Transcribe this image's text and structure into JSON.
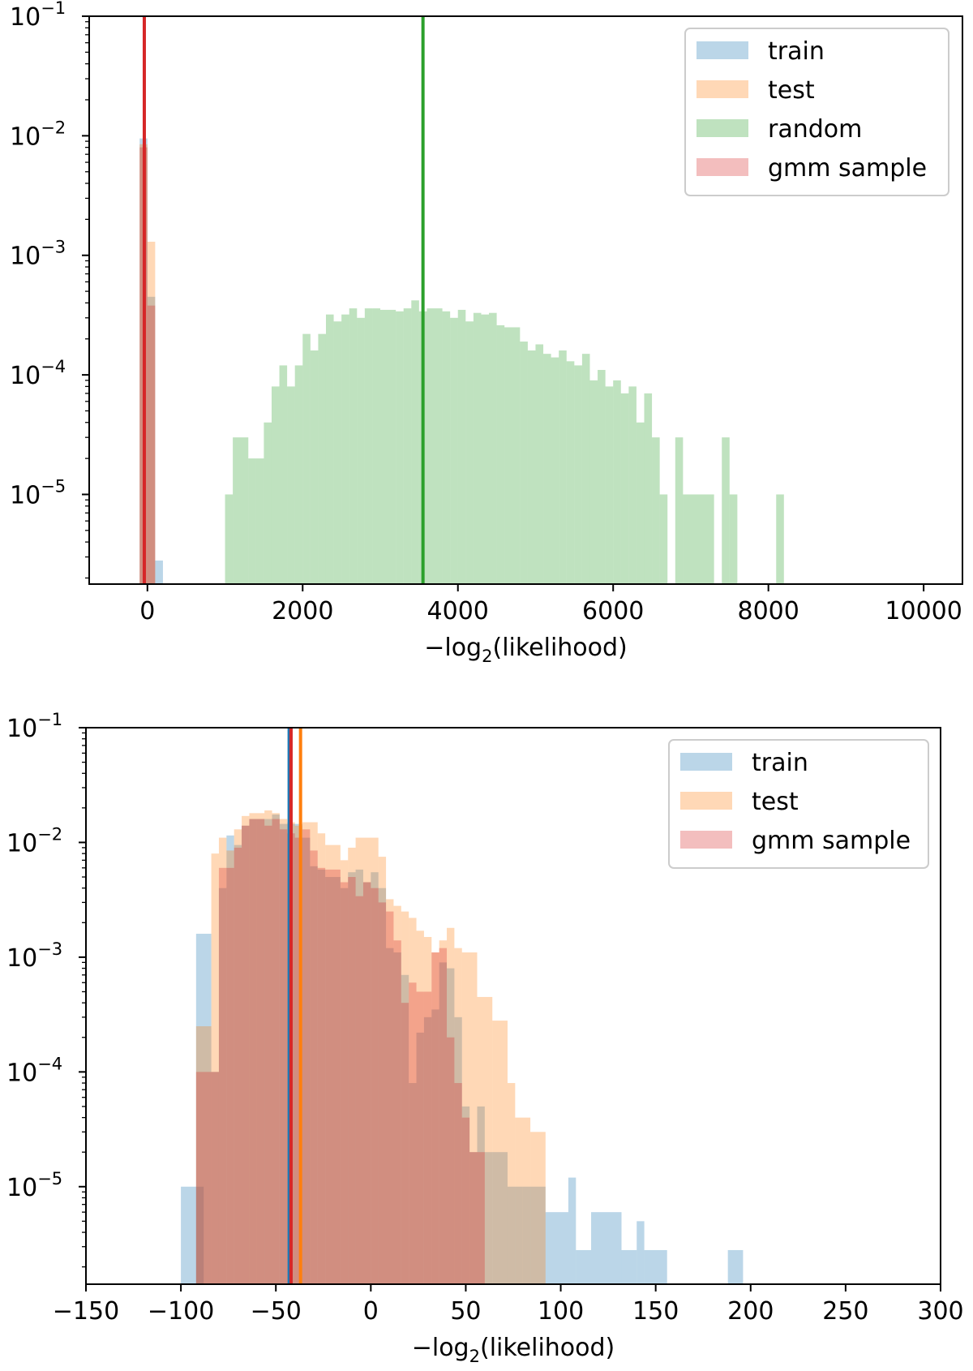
{
  "chart_data": [
    {
      "type": "histogram",
      "xlabel_prefix": "−log",
      "xlabel_sub": "2",
      "xlabel_suffix": "(likelihood)",
      "xlim": [
        -750,
        10500
      ],
      "ylim_log": [
        -5.75,
        -1
      ],
      "yscale": "log",
      "xticks": [
        0,
        2000,
        4000,
        6000,
        8000,
        10000
      ],
      "xtick_labels": [
        "0",
        "2000",
        "4000",
        "6000",
        "8000",
        "10000"
      ],
      "ytick_exps": [
        -1,
        -2,
        -3,
        -4,
        -5
      ],
      "ytick_base": "10",
      "ytick_exp_labels": [
        "−1",
        "−2",
        "−3",
        "−4",
        "−5"
      ],
      "legend_position": "upper right",
      "legend": [
        {
          "label": "train",
          "color": "#1f77b4"
        },
        {
          "label": "test",
          "color": "#ff7f0e"
        },
        {
          "label": "random",
          "color": "#2ca02c"
        },
        {
          "label": "gmm sample",
          "color": "#d62728"
        }
      ],
      "series": [
        {
          "name": "train",
          "color": "#1f77b4",
          "alpha": 0.3,
          "bins": [
            [
              -100,
              0,
              0.0095
            ],
            [
              0,
              100,
              0.00045
            ],
            [
              100,
              200,
              2.8e-06
            ]
          ]
        },
        {
          "name": "test",
          "color": "#ff7f0e",
          "alpha": 0.3,
          "bins": [
            [
              -100,
              0,
              0.0085
            ],
            [
              0,
              100,
              0.0013
            ]
          ]
        },
        {
          "name": "random",
          "color": "#2ca02c",
          "alpha": 0.3,
          "bins": [
            [
              1000,
              1100,
              1e-05
            ],
            [
              1100,
              1300,
              3e-05
            ],
            [
              1300,
              1400,
              2e-05
            ],
            [
              1400,
              1500,
              2e-05
            ],
            [
              1500,
              1600,
              4e-05
            ],
            [
              1600,
              1700,
              8e-05
            ],
            [
              1700,
              1800,
              0.00012
            ],
            [
              1800,
              1900,
              8e-05
            ],
            [
              1900,
              2000,
              0.00012
            ],
            [
              2000,
              2100,
              0.00022
            ],
            [
              2100,
              2200,
              0.00016
            ],
            [
              2200,
              2300,
              0.00022
            ],
            [
              2300,
              2400,
              0.00032
            ],
            [
              2400,
              2500,
              0.00028
            ],
            [
              2500,
              2600,
              0.00032
            ],
            [
              2600,
              2700,
              0.00036
            ],
            [
              2700,
              2800,
              0.0003
            ],
            [
              2800,
              2900,
              0.00036
            ],
            [
              2900,
              3000,
              0.00036
            ],
            [
              3000,
              3200,
              0.00035
            ],
            [
              3200,
              3300,
              0.00034
            ],
            [
              3300,
              3400,
              0.00036
            ],
            [
              3400,
              3500,
              0.00042
            ],
            [
              3500,
              3600,
              0.00034
            ],
            [
              3600,
              3700,
              0.00036
            ],
            [
              3700,
              3800,
              0.00036
            ],
            [
              3800,
              3900,
              0.00034
            ],
            [
              3900,
              4000,
              0.0003
            ],
            [
              4000,
              4100,
              0.00035
            ],
            [
              4100,
              4200,
              0.00028
            ],
            [
              4200,
              4300,
              0.00033
            ],
            [
              4300,
              4400,
              0.00032
            ],
            [
              4400,
              4500,
              0.00033
            ],
            [
              4500,
              4600,
              0.00026
            ],
            [
              4600,
              4800,
              0.00025
            ],
            [
              4800,
              4900,
              0.00019
            ],
            [
              4900,
              5000,
              0.00016
            ],
            [
              5000,
              5100,
              0.00018
            ],
            [
              5100,
              5200,
              0.00015
            ],
            [
              5200,
              5300,
              0.00014
            ],
            [
              5300,
              5400,
              0.00016
            ],
            [
              5400,
              5500,
              0.00013
            ],
            [
              5500,
              5600,
              0.00012
            ],
            [
              5600,
              5700,
              0.00015
            ],
            [
              5700,
              5800,
              9e-05
            ],
            [
              5800,
              5900,
              0.00011
            ],
            [
              5900,
              6000,
              8e-05
            ],
            [
              6000,
              6100,
              9e-05
            ],
            [
              6100,
              6200,
              7e-05
            ],
            [
              6200,
              6300,
              8e-05
            ],
            [
              6300,
              6400,
              4e-05
            ],
            [
              6400,
              6500,
              7e-05
            ],
            [
              6500,
              6600,
              3e-05
            ],
            [
              6600,
              6700,
              1e-05
            ],
            [
              6800,
              6900,
              3e-05
            ],
            [
              6900,
              7300,
              1e-05
            ],
            [
              7400,
              7500,
              3e-05
            ],
            [
              7500,
              7600,
              1e-05
            ],
            [
              8100,
              8200,
              1e-05
            ]
          ]
        },
        {
          "name": "gmm sample",
          "color": "#d62728",
          "alpha": 0.3,
          "bins": [
            [
              -100,
              0,
              0.008
            ],
            [
              0,
              100,
              0.00038
            ]
          ]
        }
      ],
      "vlines": [
        {
          "series": "random",
          "x": 3550,
          "color": "#2ca02c"
        },
        {
          "series": "gmm sample",
          "x": -40,
          "color": "#d62728"
        }
      ]
    },
    {
      "type": "histogram",
      "xlabel_prefix": "−log",
      "xlabel_sub": "2",
      "xlabel_suffix": "(likelihood)",
      "xlim": [
        -150,
        300
      ],
      "ylim_log": [
        -5.85,
        -1
      ],
      "yscale": "log",
      "xticks": [
        -150,
        -100,
        -50,
        0,
        50,
        100,
        150,
        200,
        250,
        300
      ],
      "xtick_labels": [
        "−150",
        "−100",
        "−50",
        "0",
        "50",
        "100",
        "150",
        "200",
        "250",
        "300"
      ],
      "ytick_exps": [
        -1,
        -2,
        -3,
        -4,
        -5
      ],
      "ytick_base": "10",
      "ytick_exp_labels": [
        "−1",
        "−2",
        "−3",
        "−4",
        "−5"
      ],
      "legend_position": "upper right",
      "legend": [
        {
          "label": "train",
          "color": "#1f77b4"
        },
        {
          "label": "test",
          "color": "#ff7f0e"
        },
        {
          "label": "gmm sample",
          "color": "#d62728"
        }
      ],
      "series": [
        {
          "name": "train",
          "color": "#1f77b4",
          "alpha": 0.3,
          "bins": [
            [
              -100,
              -92,
              1e-05
            ],
            [
              -92,
              -88,
              1e-05
            ],
            [
              -92,
              -84,
              0.0016
            ],
            [
              -84,
              -80,
              0.0001
            ],
            [
              -80,
              -76,
              0.004
            ],
            [
              -76,
              -72,
              0.0115
            ],
            [
              -72,
              -68,
              0.0095
            ],
            [
              -68,
              -64,
              0.014
            ],
            [
              -64,
              -60,
              0.016
            ],
            [
              -60,
              -52,
              0.016
            ],
            [
              -52,
              -48,
              0.0175
            ],
            [
              -48,
              -44,
              0.0145
            ],
            [
              -44,
              -36,
              0.0145
            ],
            [
              -36,
              -32,
              0.011
            ],
            [
              -32,
              -28,
              0.0062
            ],
            [
              -28,
              -24,
              0.0058
            ],
            [
              -24,
              -16,
              0.005
            ],
            [
              -16,
              -12,
              0.004
            ],
            [
              -12,
              -8,
              0.0055
            ],
            [
              -8,
              -4,
              0.0058
            ],
            [
              -4,
              0,
              0.0045
            ],
            [
              0,
              4,
              0.0055
            ],
            [
              4,
              8,
              0.004
            ],
            [
              8,
              12,
              0.0012
            ],
            [
              12,
              16,
              0.0011
            ],
            [
              16,
              20,
              0.0007
            ],
            [
              20,
              24,
              8e-05
            ],
            [
              24,
              28,
              0.00022
            ],
            [
              28,
              32,
              0.0003
            ],
            [
              32,
              36,
              0.00035
            ],
            [
              36,
              40,
              0.0009
            ],
            [
              40,
              44,
              0.0008
            ],
            [
              44,
              48,
              0.0003
            ],
            [
              48,
              52,
              5e-05
            ],
            [
              52,
              56,
              2e-05
            ],
            [
              56,
              60,
              5e-05
            ],
            [
              60,
              64,
              2e-05
            ],
            [
              64,
              72,
              2e-05
            ],
            [
              72,
              80,
              1e-05
            ],
            [
              80,
              92,
              1e-05
            ],
            [
              92,
              104,
              6e-06
            ],
            [
              104,
              108,
              1.2e-05
            ],
            [
              108,
              116,
              2.8e-06
            ],
            [
              116,
              132,
              6e-06
            ],
            [
              132,
              140,
              2.8e-06
            ],
            [
              140,
              144,
              5e-06
            ],
            [
              144,
              156,
              2.8e-06
            ],
            [
              188,
              196,
              2.8e-06
            ]
          ]
        },
        {
          "name": "test",
          "color": "#ff7f0e",
          "alpha": 0.3,
          "bins": [
            [
              -92,
              -84,
              0.00025
            ],
            [
              -84,
              -80,
              0.008
            ],
            [
              -80,
              -76,
              0.011
            ],
            [
              -76,
              -72,
              0.0085
            ],
            [
              -72,
              -68,
              0.013
            ],
            [
              -68,
              -64,
              0.017
            ],
            [
              -64,
              -56,
              0.018
            ],
            [
              -56,
              -52,
              0.019
            ],
            [
              -52,
              -48,
              0.018
            ],
            [
              -48,
              -44,
              0.016
            ],
            [
              -44,
              -40,
              0.015
            ],
            [
              -40,
              -36,
              0.014
            ],
            [
              -36,
              -28,
              0.015
            ],
            [
              -28,
              -24,
              0.012
            ],
            [
              -24,
              -16,
              0.0095
            ],
            [
              -16,
              -12,
              0.007
            ],
            [
              -12,
              -8,
              0.009
            ],
            [
              -8,
              4,
              0.011
            ],
            [
              4,
              8,
              0.0075
            ],
            [
              8,
              12,
              0.0032
            ],
            [
              12,
              16,
              0.0028
            ],
            [
              16,
              20,
              0.0025
            ],
            [
              20,
              24,
              0.0022
            ],
            [
              24,
              28,
              0.0017
            ],
            [
              28,
              32,
              0.0015
            ],
            [
              32,
              36,
              0.0011
            ],
            [
              36,
              40,
              0.0014
            ],
            [
              40,
              44,
              0.0018
            ],
            [
              44,
              48,
              0.0012
            ],
            [
              48,
              56,
              0.0011
            ],
            [
              56,
              64,
              0.00045
            ],
            [
              64,
              72,
              0.00028
            ],
            [
              72,
              76,
              8e-05
            ],
            [
              76,
              84,
              4e-05
            ],
            [
              84,
              92,
              3e-05
            ]
          ]
        },
        {
          "name": "gmm sample",
          "color": "#d62728",
          "alpha": 0.3,
          "bins": [
            [
              -92,
              -80,
              0.0001
            ],
            [
              -80,
              -76,
              0.006
            ],
            [
              -76,
              -72,
              0.006
            ],
            [
              -72,
              -68,
              0.009
            ],
            [
              -68,
              -64,
              0.014
            ],
            [
              -64,
              -56,
              0.016
            ],
            [
              -56,
              -52,
              0.014
            ],
            [
              -52,
              -48,
              0.016
            ],
            [
              -48,
              -44,
              0.013
            ],
            [
              -44,
              -40,
              0.012
            ],
            [
              -40,
              -36,
              0.011
            ],
            [
              -36,
              -32,
              0.013
            ],
            [
              -32,
              -28,
              0.0085
            ],
            [
              -28,
              -24,
              0.006
            ],
            [
              -24,
              -16,
              0.0058
            ],
            [
              -16,
              -12,
              0.0045
            ],
            [
              -12,
              -8,
              0.005
            ],
            [
              -8,
              -4,
              0.0034
            ],
            [
              -4,
              0,
              0.0045
            ],
            [
              0,
              4,
              0.004
            ],
            [
              4,
              8,
              0.003
            ],
            [
              8,
              12,
              0.0025
            ],
            [
              12,
              16,
              0.0014
            ],
            [
              16,
              20,
              0.0004
            ],
            [
              20,
              24,
              0.0006
            ],
            [
              24,
              28,
              0.0005
            ],
            [
              28,
              32,
              0.0005
            ],
            [
              32,
              36,
              0.0011
            ],
            [
              36,
              40,
              0.0012
            ],
            [
              40,
              44,
              0.0002
            ],
            [
              44,
              48,
              8e-05
            ],
            [
              48,
              52,
              4e-05
            ],
            [
              52,
              60,
              2e-05
            ]
          ]
        }
      ],
      "vlines": [
        {
          "series": "train",
          "x": -43,
          "color": "#1f77b4"
        },
        {
          "series": "gmm sample",
          "x": -42,
          "color": "#d62728"
        },
        {
          "series": "test",
          "x": -37,
          "color": "#ff7f0e"
        }
      ]
    }
  ]
}
